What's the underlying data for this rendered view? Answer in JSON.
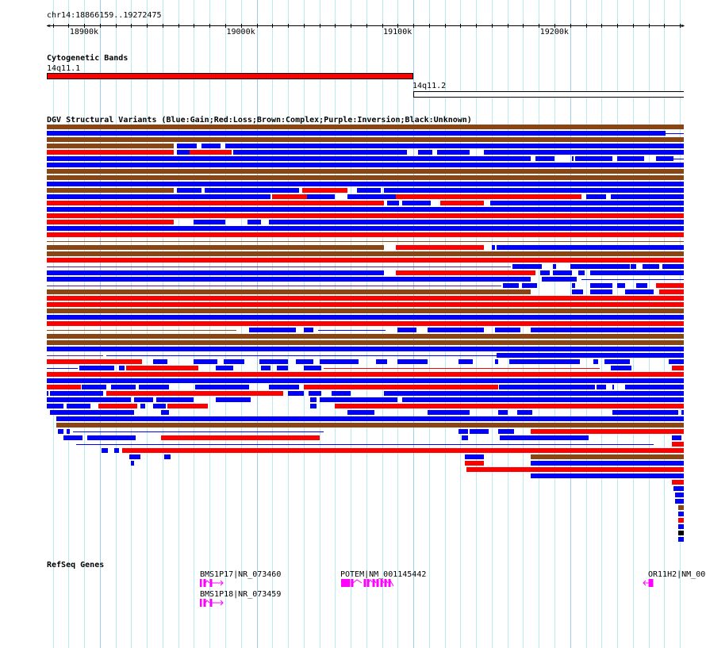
{
  "ruler": {
    "location": "chr14:18866159..19272475",
    "start": 18866.159,
    "end": 19272.475,
    "major_labels": [
      {
        "pos": 18900,
        "label": "18900k"
      },
      {
        "pos": 19000,
        "label": "19000k"
      },
      {
        "pos": 19100,
        "label": "19100k"
      },
      {
        "pos": 19200,
        "label": "19200k"
      }
    ]
  },
  "colors": {
    "b": "#0000ff",
    "r": "#ff0000",
    "n": "#8b4513",
    "k": "#000000",
    "p": "#551a8b",
    "gene": "#ff00ff"
  },
  "cytobands": {
    "title": "Cytogenetic Bands",
    "bands": [
      {
        "name": "14q11.1",
        "start": 18866,
        "end": 19100,
        "fill": "#ff0000"
      },
      {
        "name": "14q11.2",
        "start": 19100,
        "end": 19272.5,
        "fill": "#ffffff"
      }
    ]
  },
  "dgv": {
    "title": "DGV Structural Variants (Blue:Gain;Red:Loss;Brown:Complex;Purple:Inversion;Black:Unknown)",
    "rows": [
      [
        [
          "n",
          18866,
          19272.5
        ]
      ],
      [
        [
          "b",
          18866,
          19261
        ],
        [
          "lb",
          19261,
          19272.5
        ]
      ],
      [
        [
          "n",
          18866,
          19272.5
        ]
      ],
      [
        [
          "n",
          18866,
          18947
        ],
        [
          "b",
          18949,
          18962
        ],
        [
          "b",
          18965,
          18977
        ],
        [
          "b",
          18980,
          19272.5
        ]
      ],
      [
        [
          "r",
          18866,
          18947
        ],
        [
          "b",
          18949,
          18957
        ],
        [
          "r",
          18957,
          18984
        ],
        [
          "b",
          18985,
          19096
        ],
        [
          "b",
          19103,
          19112
        ],
        [
          "b",
          19115,
          19136
        ],
        [
          "b",
          19145,
          19272.5
        ]
      ],
      [
        [
          "b",
          18866,
          19175
        ],
        [
          "b",
          19178,
          19190
        ],
        [
          "b",
          19201,
          19202
        ],
        [
          "b",
          19203,
          19227
        ],
        [
          "b",
          19230,
          19247
        ],
        [
          "b",
          19255,
          19266
        ],
        [
          "lb",
          19266,
          19272.5
        ]
      ],
      [
        [
          "b",
          18866,
          19272.5
        ]
      ],
      [
        [
          "n",
          18866,
          19272.5
        ]
      ],
      [
        [
          "n",
          18866,
          19272.5
        ]
      ],
      [
        [
          "b",
          18866,
          19272.5
        ]
      ],
      [
        [
          "n",
          18866,
          18947
        ],
        [
          "b",
          18949,
          18965
        ],
        [
          "b",
          18967,
          19027
        ],
        [
          "r",
          19029,
          19058
        ],
        [
          "b",
          19064,
          19079
        ],
        [
          "b",
          19081,
          19272.5
        ]
      ],
      [
        [
          "b",
          18866,
          19009
        ],
        [
          "r",
          19010,
          19032
        ],
        [
          "b",
          19032,
          19050
        ],
        [
          "b",
          19058,
          19089
        ],
        [
          "r",
          19089,
          19207
        ],
        [
          "b",
          19210,
          19223
        ],
        [
          "b",
          19226,
          19272.5
        ]
      ],
      [
        [
          "r",
          18866,
          19081
        ],
        [
          "b",
          19083,
          19091
        ],
        [
          "b",
          19093,
          19111
        ],
        [
          "r",
          19117,
          19145
        ],
        [
          "b",
          19149,
          19272.5
        ]
      ],
      [
        [
          "b",
          18866,
          19272.5
        ]
      ],
      [
        [
          "r",
          18866,
          19272.5
        ]
      ],
      [
        [
          "r",
          18866,
          18947
        ],
        [
          "b",
          18960,
          18980
        ],
        [
          "b",
          18994,
          19003
        ],
        [
          "b",
          19008,
          19272.5
        ]
      ],
      [
        [
          "b",
          18866,
          19272.5
        ]
      ],
      [
        [
          "r",
          18866,
          19272.5
        ]
      ],
      [
        [
          "ln",
          18866,
          19272.5
        ]
      ],
      [
        [
          "n",
          18866,
          19081
        ],
        [
          "r",
          19089,
          19145
        ],
        [
          "b",
          19150,
          19152
        ],
        [
          "b",
          19153,
          19272.5
        ]
      ],
      [
        [
          "n",
          18866,
          19272.5
        ]
      ],
      [
        [
          "r",
          18866,
          19272.5
        ]
      ],
      [
        [
          "lp",
          18866,
          19162
        ],
        [
          "b",
          19163,
          19182
        ],
        [
          "b",
          19189,
          19191
        ],
        [
          "b",
          19200,
          19238
        ],
        [
          "b",
          19238.5,
          19242
        ],
        [
          "b",
          19246,
          19257
        ],
        [
          "b",
          19259,
          19272.5
        ]
      ],
      [
        [
          "b",
          18866,
          19081
        ],
        [
          "r",
          19089,
          19178
        ],
        [
          "b",
          19181,
          19187
        ],
        [
          "b",
          19189,
          19201
        ],
        [
          "b",
          19205,
          19209
        ],
        [
          "b",
          19213,
          19272.5
        ]
      ],
      [
        [
          "b",
          18866,
          19175
        ],
        [
          "b",
          19182,
          19204
        ],
        [
          "lb",
          19207,
          19272.5
        ]
      ],
      [
        [
          "lp",
          18866,
          19156
        ],
        [
          "b",
          19157,
          19167
        ],
        [
          "b",
          19169,
          19179
        ],
        [
          "b",
          19201,
          19203
        ],
        [
          "b",
          19213,
          19227
        ],
        [
          "b",
          19230,
          19235
        ],
        [
          "b",
          19242,
          19249
        ],
        [
          "r",
          19255,
          19272.5
        ]
      ],
      [
        [
          "n",
          18866,
          19175
        ],
        [
          "b",
          19201,
          19208
        ],
        [
          "b",
          19213,
          19227
        ],
        [
          "b",
          19235,
          19253
        ],
        [
          "r",
          19257,
          19272.5
        ]
      ],
      [
        [
          "r",
          18866,
          19272.5
        ]
      ],
      [
        [
          "r",
          18866,
          19272.5
        ]
      ],
      [
        [
          "n",
          18866,
          19272.5
        ]
      ],
      [
        [
          "b",
          18866,
          19272.5
        ]
      ],
      [
        [
          "r",
          18866,
          19272.5
        ]
      ],
      [
        [
          "ln",
          18866,
          18987
        ],
        [
          "b",
          18995,
          19025
        ],
        [
          "b",
          19030,
          19036
        ],
        [
          "lb",
          19039,
          19082
        ],
        [
          "b",
          19090,
          19102
        ],
        [
          "b",
          19109,
          19145
        ],
        [
          "b",
          19152,
          19168
        ],
        [
          "b",
          19175,
          19272.5
        ]
      ],
      [
        [
          "n",
          18866,
          19272.5
        ]
      ],
      [
        [
          "n",
          18866,
          19272.5
        ]
      ],
      [
        [
          "b",
          18866,
          19272.5
        ]
      ],
      [
        [
          "lp",
          18866,
          18902
        ],
        [
          "lb",
          18904,
          19153
        ],
        [
          "b",
          19153,
          19272.5
        ]
      ],
      [
        [
          "r",
          18866,
          18927
        ],
        [
          "b",
          18934,
          18943
        ],
        [
          "b",
          18960,
          18975
        ],
        [
          "b",
          18979,
          18992
        ],
        [
          "b",
          19002,
          19020
        ],
        [
          "b",
          19025,
          19036
        ],
        [
          "b",
          19040,
          19065
        ],
        [
          "b",
          19076,
          19083
        ],
        [
          "b",
          19090,
          19109
        ],
        [
          "b",
          19129,
          19138
        ],
        [
          "b",
          19152,
          19154
        ],
        [
          "b",
          19161,
          19206
        ],
        [
          "b",
          19215,
          19218
        ],
        [
          "b",
          19222,
          19238
        ],
        [
          "b",
          19263,
          19272.5
        ]
      ],
      [
        [
          "lb",
          18866,
          18886
        ],
        [
          "b",
          18887,
          18909
        ],
        [
          "b",
          18912,
          18916
        ],
        [
          "r",
          18917,
          18963
        ],
        [
          "b",
          18974,
          18985
        ],
        [
          "b",
          19003,
          19009
        ],
        [
          "b",
          19013,
          19020
        ],
        [
          "b",
          19030,
          19041
        ],
        [
          "lr",
          19043,
          19219
        ],
        [
          "b",
          19226,
          19239
        ],
        [
          "r",
          19265,
          19272.5
        ]
      ],
      [
        [
          "r",
          18866,
          19272.5
        ]
      ],
      [
        [
          "b",
          18866,
          19272.5
        ]
      ],
      [
        [
          "r",
          18866,
          18888
        ],
        [
          "b",
          18888.5,
          18904
        ],
        [
          "b",
          18907,
          18923
        ],
        [
          "b",
          18925,
          18944
        ],
        [
          "b",
          18961,
          18995
        ],
        [
          "b",
          19008,
          19027
        ],
        [
          "r",
          19030,
          19154
        ],
        [
          "b",
          19154.5,
          19216
        ],
        [
          "b",
          19217,
          19223
        ],
        [
          "b",
          19227,
          19228
        ],
        [
          "b",
          19235,
          19272.5
        ]
      ],
      [
        [
          "b",
          18866,
          18867
        ],
        [
          "b",
          18868,
          18902
        ],
        [
          "r",
          18904,
          19017
        ],
        [
          "b",
          19020,
          19030
        ],
        [
          "b",
          19033,
          19041
        ],
        [
          "b",
          19048,
          19060
        ],
        [
          "b",
          19081,
          19272.5
        ]
      ],
      [
        [
          "b",
          18866,
          18920
        ],
        [
          "b",
          18922,
          18934
        ],
        [
          "b",
          18936,
          18960
        ],
        [
          "b",
          18974,
          18996
        ],
        [
          "b",
          19034,
          19038
        ],
        [
          "b",
          19040,
          19090
        ],
        [
          "b",
          19093,
          19272.5
        ]
      ],
      [
        [
          "b",
          18866,
          18877
        ],
        [
          "b",
          18879,
          18894
        ],
        [
          "r",
          18899,
          18924
        ],
        [
          "b",
          18926,
          18929
        ],
        [
          "b",
          18934,
          18942
        ],
        [
          "r",
          18943,
          18969
        ],
        [
          "b",
          19034,
          19038
        ],
        [
          "r",
          19050,
          19272.5
        ]
      ],
      [
        [
          "b",
          18868,
          18922
        ],
        [
          "b",
          18939,
          18944
        ],
        [
          "b",
          19058,
          19075
        ],
        [
          "b",
          19109,
          19136
        ],
        [
          "b",
          19154,
          19160
        ],
        [
          "b",
          19166,
          19176
        ],
        [
          "b",
          19227,
          19269
        ],
        [
          "b",
          19271,
          19272.5
        ]
      ],
      [
        [
          "b",
          18872,
          19272.5
        ]
      ],
      [
        [
          "n",
          18872,
          19272.5
        ]
      ],
      [
        [
          "b",
          18873,
          18877
        ],
        [
          "b",
          18879,
          18881
        ],
        [
          "lb",
          18883,
          19043
        ],
        [
          "b",
          19129,
          19135
        ],
        [
          "b",
          19136,
          19148
        ],
        [
          "b",
          19154,
          19164
        ],
        [
          "r",
          19175,
          19272.5
        ]
      ],
      [
        [
          "b",
          18877,
          18889
        ],
        [
          "b",
          18892,
          18923
        ],
        [
          "r",
          18939,
          19040
        ],
        [
          "b",
          19131,
          19135
        ],
        [
          "b",
          19155,
          19212
        ],
        [
          "b",
          19265,
          19271
        ]
      ],
      [
        [
          "lb",
          18885,
          19253
        ],
        [
          "r",
          19265,
          19272.5
        ]
      ],
      [
        [
          "b",
          18901,
          18905
        ],
        [
          "b",
          18909,
          18912
        ],
        [
          "r",
          18914,
          19272.5
        ]
      ],
      [
        [
          "b",
          18919,
          18926
        ],
        [
          "b",
          18941,
          18945
        ],
        [
          "b",
          19133,
          19145
        ],
        [
          "n",
          19175,
          19272.5
        ]
      ],
      [
        [
          "b",
          18920,
          18922
        ],
        [
          "r",
          19133,
          19145
        ],
        [
          "b",
          19175,
          19272.5
        ]
      ],
      [
        [
          "r",
          19134,
          19272.5
        ]
      ],
      [
        [
          "b",
          19175,
          19272.5
        ]
      ],
      [
        [
          "r",
          19265,
          19272.5
        ]
      ],
      [
        [
          "b",
          19266,
          19272.5
        ]
      ],
      [
        [
          "b",
          19267,
          19272.5
        ]
      ],
      [
        [
          "b",
          19267,
          19272.5
        ]
      ],
      [
        [
          "n",
          19269,
          19272.5
        ]
      ],
      [
        [
          "b",
          19269,
          19272.5
        ]
      ],
      [
        [
          "r",
          19269,
          19272.5
        ]
      ],
      [
        [
          "b",
          19269,
          19272.5
        ]
      ],
      [
        [
          "k",
          19269,
          19272.5
        ]
      ],
      [
        [
          "b",
          19269,
          19272.5
        ]
      ]
    ]
  },
  "refseq": {
    "title": "RefSeq Genes",
    "genes": [
      {
        "label": "BMS1P17|NR_073460",
        "strand": "+"
      },
      {
        "label": "BMS1P18|NR_073459",
        "strand": "+"
      },
      {
        "label": "POTEM|NM_001145442",
        "strand": "+"
      },
      {
        "label": "OR11H2|NM_00",
        "strand": "-"
      }
    ]
  }
}
